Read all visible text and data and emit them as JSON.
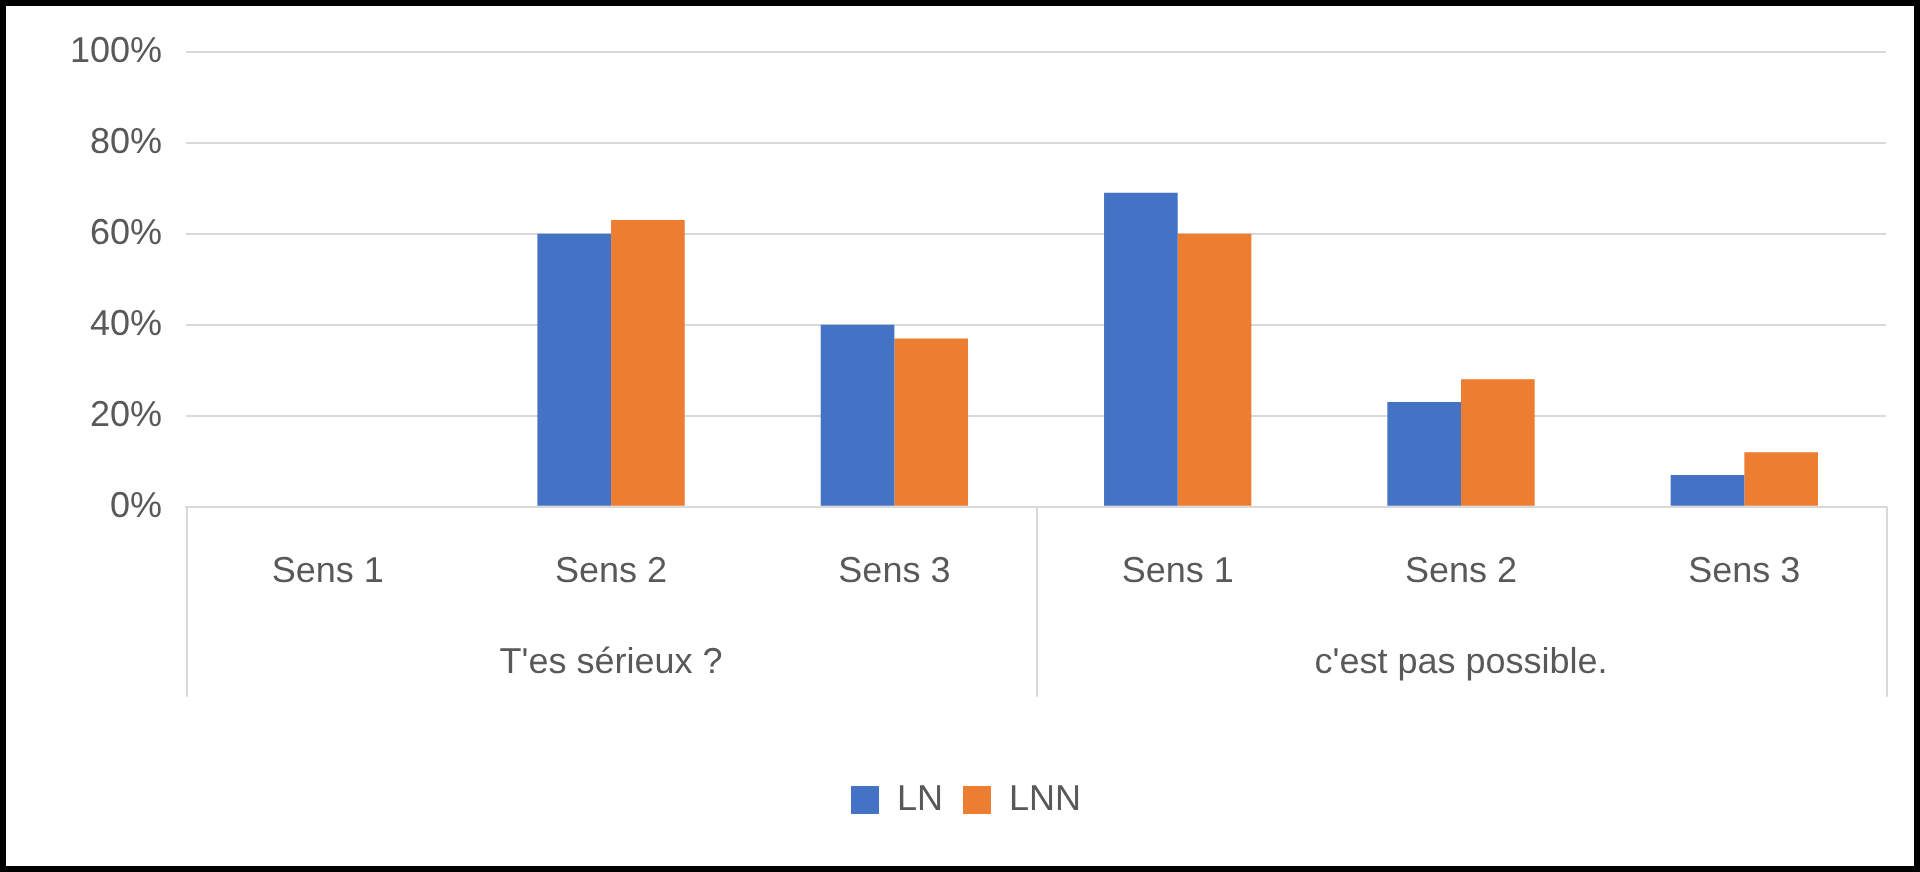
{
  "chart_data": {
    "type": "bar",
    "categories": [
      "Sens 1",
      "Sens 2",
      "Sens 3",
      "Sens 1",
      "Sens 2",
      "Sens 3"
    ],
    "series": [
      {
        "name": "LN",
        "color": "#4472c4",
        "values": [
          0,
          60,
          40,
          69,
          23,
          7
        ]
      },
      {
        "name": "LNN",
        "color": "#ed7d31",
        "values": [
          0,
          63,
          37,
          60,
          28,
          12
        ]
      }
    ],
    "annotations": [
      "T'es sérieux ?",
      "c'est pas possible."
    ],
    "ylim": [
      0,
      100
    ],
    "yticks": [
      {
        "value": 0,
        "label": "0%"
      },
      {
        "value": 20,
        "label": "20%"
      },
      {
        "value": 40,
        "label": "40%"
      },
      {
        "value": 60,
        "label": "60%"
      },
      {
        "value": 80,
        "label": "80%"
      },
      {
        "value": 100,
        "label": "100%"
      }
    ],
    "grid": "y",
    "legend": "bottom"
  }
}
